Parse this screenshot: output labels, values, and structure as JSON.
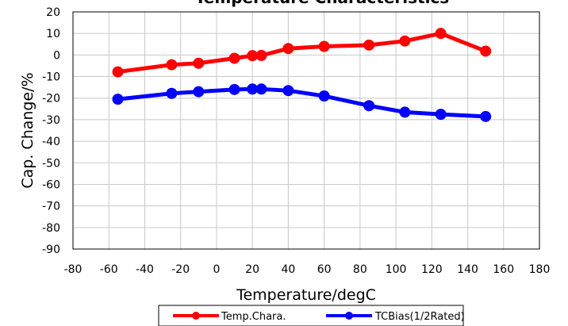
{
  "chart_data": {
    "type": "line",
    "title": "Temperature Characteristics",
    "xlabel": "Temperature/degC",
    "ylabel": "Cap. Change/%",
    "xlim": [
      -80,
      180
    ],
    "ylim": [
      -90,
      20
    ],
    "xticks": [
      -80,
      -60,
      -40,
      -20,
      0,
      20,
      40,
      60,
      80,
      100,
      120,
      140,
      160,
      180
    ],
    "yticks": [
      20,
      10,
      0,
      -10,
      -20,
      -30,
      -40,
      -50,
      -60,
      -70,
      -80,
      -90
    ],
    "grid": true,
    "legend_position": "bottom",
    "series": [
      {
        "name": "Temp.Chara.",
        "color": "#ff0000",
        "x": [
          -55,
          -25,
          -10,
          10,
          20,
          25,
          40,
          60,
          85,
          105,
          125,
          150
        ],
        "y": [
          -7.8,
          -4.5,
          -3.8,
          -1.5,
          -0.3,
          -0.2,
          3.0,
          4.0,
          4.6,
          6.5,
          10.0,
          1.8
        ]
      },
      {
        "name": "TCBias(1/2Rated)",
        "color": "#0000ff",
        "x": [
          -55,
          -25,
          -10,
          10,
          20,
          25,
          40,
          60,
          85,
          105,
          125,
          150
        ],
        "y": [
          -20.5,
          -17.8,
          -17.0,
          -16.0,
          -15.8,
          -15.8,
          -16.5,
          -19.0,
          -23.5,
          -26.5,
          -27.5,
          -28.5
        ]
      }
    ]
  }
}
